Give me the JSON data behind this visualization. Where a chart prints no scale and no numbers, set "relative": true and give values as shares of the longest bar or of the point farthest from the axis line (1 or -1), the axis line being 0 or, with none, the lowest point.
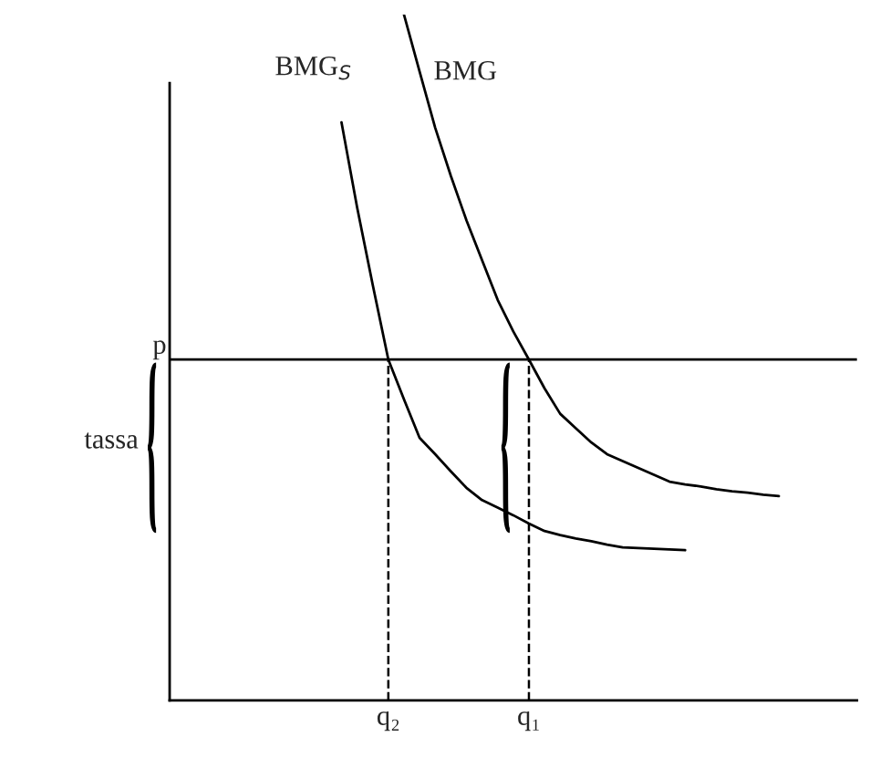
{
  "chart_data": {
    "type": "line",
    "relative": true,
    "categories": [
      null,
      null,
      null,
      null,
      null,
      null,
      null,
      null,
      null,
      null,
      null,
      null,
      null,
      null,
      "q₂",
      null,
      null,
      null,
      null,
      null,
      null,
      null,
      null,
      "q₁",
      null,
      null,
      null,
      null,
      null,
      null,
      null,
      null,
      null,
      null,
      null,
      null,
      null,
      null,
      null,
      null,
      null,
      null,
      null,
      null,
      null
    ],
    "grid": false,
    "legend": false,
    "marker": "none",
    "line_style": "solid",
    "series": [
      {
        "name": "BMG$_{S}$",
        "color": "#000000",
        "values": [
          null,
          null,
          null,
          null,
          null,
          null,
          null,
          null,
          null,
          null,
          null,
          0.843,
          0.719,
          0.606,
          0.497,
          0.439,
          0.383,
          0.359,
          0.334,
          0.31,
          0.292,
          0.281,
          0.27,
          0.258,
          0.247,
          0.241,
          0.236,
          0.232,
          0.227,
          0.223,
          0.222,
          0.221,
          0.22,
          0.219,
          null,
          null,
          null,
          null,
          null,
          null,
          null,
          null,
          null,
          null,
          null
        ]
      },
      {
        "name": "BMG",
        "color": "#000000",
        "values": [
          null,
          null,
          null,
          null,
          null,
          null,
          null,
          null,
          null,
          null,
          null,
          null,
          null,
          null,
          null,
          1.0,
          0.917,
          0.835,
          0.765,
          0.7,
          0.642,
          0.584,
          0.538,
          0.497,
          0.455,
          0.418,
          0.397,
          0.376,
          0.359,
          0.349,
          0.339,
          0.329,
          0.319,
          0.315,
          0.312,
          0.308,
          0.305,
          0.303,
          0.3,
          0.298,
          null,
          null,
          null,
          null,
          null
        ]
      }
    ],
    "ref_lines": [
      {
        "axis": "y",
        "value": 0.497,
        "label": "p",
        "color": "#000000",
        "line_style": "solid"
      },
      {
        "axis": "x",
        "value": "q₂",
        "color": "#000000",
        "line_style": "dashed"
      },
      {
        "axis": "x",
        "value": "q₁",
        "color": "#000000",
        "line_style": "dashed"
      }
    ],
    "annotations": [
      "tassa"
    ]
  }
}
